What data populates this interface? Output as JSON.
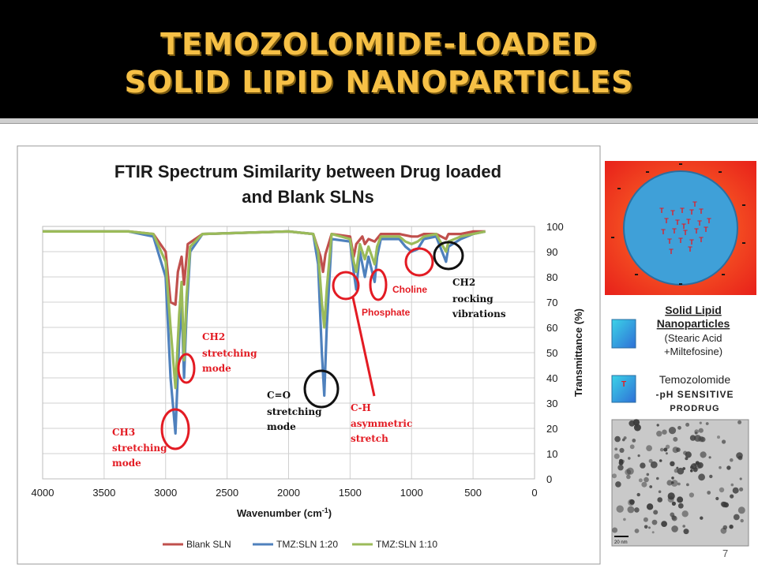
{
  "slide": {
    "title_line1": "TEMOZOLOMIDE-LOADED",
    "title_line2": "SOLID LIPID NANOPARTICLES",
    "number": "7"
  },
  "chart_data": {
    "type": "line",
    "title": "FTIR Spectrum Similarity between Drug loaded and Blank SLNs",
    "title_lines": [
      "FTIR Spectrum Similarity between Drug loaded",
      "and Blank SLNs"
    ],
    "xlabel": "Wavenumber (cm-1)",
    "ylabel": "Transmittance (%)",
    "xlim": [
      4000,
      0
    ],
    "ylim": [
      0,
      100
    ],
    "x_reversed": true,
    "x_ticks": [
      4000,
      3500,
      3000,
      2500,
      2000,
      1500,
      1000,
      500,
      0
    ],
    "y_ticks": [
      0,
      10,
      20,
      30,
      40,
      50,
      60,
      70,
      80,
      90,
      100
    ],
    "y_axis_side": "right",
    "grid": true,
    "legend_position": "bottom",
    "series": [
      {
        "name": "Blank SLN",
        "color": "#c0504d",
        "points": [
          [
            4000,
            98
          ],
          [
            3300,
            98
          ],
          [
            3100,
            97
          ],
          [
            3000,
            90
          ],
          [
            2960,
            70
          ],
          [
            2920,
            69
          ],
          [
            2900,
            82
          ],
          [
            2870,
            88
          ],
          [
            2850,
            77
          ],
          [
            2820,
            93
          ],
          [
            2700,
            97
          ],
          [
            2000,
            98
          ],
          [
            1800,
            97
          ],
          [
            1740,
            88
          ],
          [
            1720,
            82
          ],
          [
            1700,
            89
          ],
          [
            1650,
            97
          ],
          [
            1500,
            96
          ],
          [
            1470,
            88
          ],
          [
            1450,
            93
          ],
          [
            1400,
            96
          ],
          [
            1380,
            93
          ],
          [
            1350,
            95
          ],
          [
            1300,
            94
          ],
          [
            1250,
            97
          ],
          [
            1100,
            97
          ],
          [
            1000,
            96
          ],
          [
            950,
            96
          ],
          [
            900,
            97
          ],
          [
            800,
            97
          ],
          [
            720,
            95
          ],
          [
            700,
            97
          ],
          [
            600,
            97
          ],
          [
            500,
            98
          ],
          [
            400,
            98
          ]
        ]
      },
      {
        "name": "TMZ:SLN 1:20",
        "color": "#4f81bd",
        "points": [
          [
            4000,
            98
          ],
          [
            3300,
            98
          ],
          [
            3100,
            96
          ],
          [
            3000,
            80
          ],
          [
            2960,
            40
          ],
          [
            2920,
            18
          ],
          [
            2890,
            55
          ],
          [
            2870,
            70
          ],
          [
            2850,
            40
          ],
          [
            2830,
            65
          ],
          [
            2800,
            90
          ],
          [
            2700,
            97
          ],
          [
            2000,
            98
          ],
          [
            1800,
            97
          ],
          [
            1760,
            85
          ],
          [
            1730,
            50
          ],
          [
            1710,
            33
          ],
          [
            1690,
            60
          ],
          [
            1650,
            95
          ],
          [
            1500,
            94
          ],
          [
            1470,
            82
          ],
          [
            1450,
            75
          ],
          [
            1420,
            90
          ],
          [
            1380,
            80
          ],
          [
            1350,
            88
          ],
          [
            1300,
            78
          ],
          [
            1280,
            88
          ],
          [
            1250,
            95
          ],
          [
            1100,
            95
          ],
          [
            1050,
            92
          ],
          [
            1000,
            90
          ],
          [
            950,
            91
          ],
          [
            900,
            95
          ],
          [
            800,
            96
          ],
          [
            720,
            86
          ],
          [
            700,
            92
          ],
          [
            600,
            95
          ],
          [
            500,
            97
          ],
          [
            400,
            98
          ]
        ]
      },
      {
        "name": "TMZ:SLN 1:10",
        "color": "#9bbb59",
        "points": [
          [
            4000,
            98
          ],
          [
            3300,
            98
          ],
          [
            3100,
            97
          ],
          [
            3000,
            86
          ],
          [
            2960,
            60
          ],
          [
            2920,
            36
          ],
          [
            2890,
            65
          ],
          [
            2870,
            78
          ],
          [
            2850,
            47
          ],
          [
            2830,
            72
          ],
          [
            2800,
            92
          ],
          [
            2700,
            97
          ],
          [
            2000,
            98
          ],
          [
            1800,
            97
          ],
          [
            1760,
            90
          ],
          [
            1730,
            70
          ],
          [
            1710,
            60
          ],
          [
            1690,
            75
          ],
          [
            1650,
            97
          ],
          [
            1500,
            95
          ],
          [
            1470,
            86
          ],
          [
            1450,
            82
          ],
          [
            1420,
            93
          ],
          [
            1380,
            87
          ],
          [
            1350,
            92
          ],
          [
            1300,
            85
          ],
          [
            1280,
            92
          ],
          [
            1250,
            96
          ],
          [
            1100,
            96
          ],
          [
            1050,
            94
          ],
          [
            1000,
            93
          ],
          [
            950,
            94
          ],
          [
            900,
            96
          ],
          [
            800,
            97
          ],
          [
            720,
            90
          ],
          [
            700,
            94
          ],
          [
            600,
            96
          ],
          [
            500,
            97
          ],
          [
            400,
            98
          ]
        ]
      }
    ]
  },
  "annotations": [
    {
      "id": "ch3",
      "lines": [
        "CH3",
        "stretching",
        "mode"
      ],
      "color": "#e31b23"
    },
    {
      "id": "ch2s",
      "lines": [
        "CH2",
        "stretching",
        "mode"
      ],
      "color": "#e31b23"
    },
    {
      "id": "co",
      "lines": [
        "C=O",
        "stretching",
        "mode"
      ],
      "color": "#000000"
    },
    {
      "id": "ch",
      "lines": [
        "C-H",
        "asymmetric",
        "stretch"
      ],
      "color": "#e31b23"
    },
    {
      "id": "phosphate",
      "lines": [
        "Phosphate"
      ],
      "color": "#e31b23"
    },
    {
      "id": "choline",
      "lines": [
        "Choline"
      ],
      "color": "#e31b23"
    },
    {
      "id": "ch2r",
      "lines": [
        "CH2",
        "rocking",
        "vibrations"
      ],
      "color": "#000000"
    }
  ],
  "schematic": {
    "tmz_letter": "T",
    "charge_symbol": "-",
    "legend_title_1": "Solid Lipid",
    "legend_title_2": "Nanoparticles",
    "legend_sub_1": "(Stearic Acid",
    "legend_sub_2": "+Miltefosine)",
    "tmz_label_1": "Temozolomide",
    "tmz_label_2": "-pH SENSITIVE",
    "tmz_label_3": "PRODRUG",
    "tem_scale": "20 nm"
  }
}
